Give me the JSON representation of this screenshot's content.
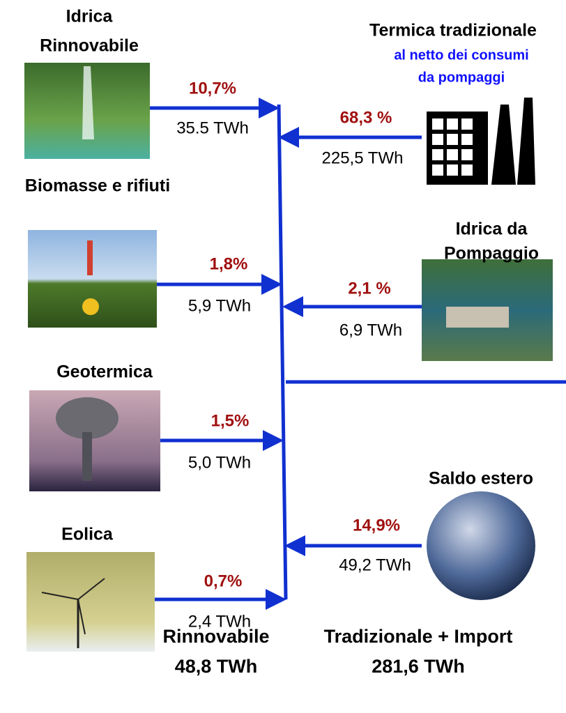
{
  "sources": [
    {
      "title": [
        "Idrica",
        "Rinnovabile"
      ],
      "percent": "10,7%",
      "energy": "35.5 TWh"
    },
    {
      "title": [
        "Biomasse e rifiuti"
      ],
      "percent": "1,8%",
      "energy": "5,9 TWh"
    },
    {
      "title": [
        "Geotermica"
      ],
      "percent": "1,5%",
      "energy": "5,0 TWh"
    },
    {
      "title": [
        "Eolica"
      ],
      "percent": "0,7%",
      "energy": "2,4 TWh"
    },
    {
      "title": [
        "Termica tradizionale"
      ],
      "subtitle": [
        "al netto dei consumi",
        "da pompaggi"
      ],
      "percent": "68,3 %",
      "energy": "225,5 TWh"
    },
    {
      "title": [
        "Idrica da",
        "Pompaggio"
      ],
      "percent": "2,1 %",
      "energy": "6,9 TWh"
    },
    {
      "title": [
        "Saldo estero"
      ],
      "percent": "14,9%",
      "energy": "49,2 TWh"
    }
  ],
  "totals": [
    {
      "label": "Rinnovabile",
      "value": "48,8 TWh"
    },
    {
      "label": "Tradizionale + Import",
      "value": "281,6 TWh"
    }
  ]
}
